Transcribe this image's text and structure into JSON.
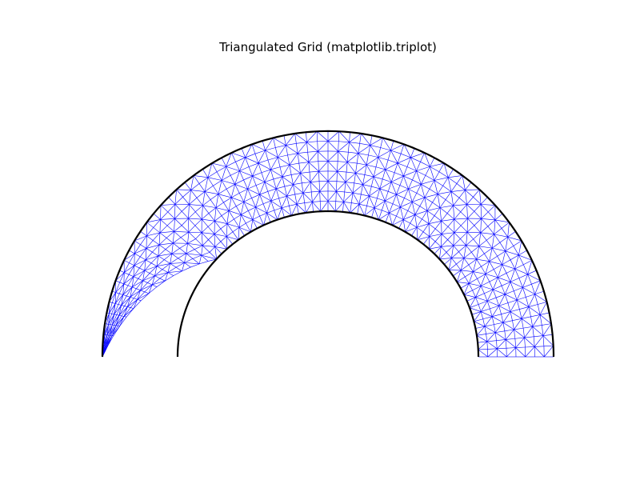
{
  "chart_data": {
    "type": "triplot",
    "title": "Triangulated Grid (matplotlib.triplot)",
    "xlabel": "",
    "ylabel": "",
    "axes_visible": false,
    "grid": false,
    "colors": {
      "mesh": "#0000ff",
      "boundary": "#000000"
    },
    "inner_circle": {
      "center": [
        0.0,
        0.0
      ],
      "radius": 1.0,
      "theta_range_deg": [
        0,
        180
      ]
    },
    "outer_ellipse": {
      "center": [
        0.0,
        0.0
      ],
      "a": 1.5,
      "b": 1.55,
      "theta_range_deg": [
        0,
        180
      ]
    },
    "mesh": {
      "theta_range_deg": [
        0,
        180
      ],
      "radial_levels": 8,
      "angular_steps": 64,
      "inner_visible_from_deg": 0,
      "inner_visible_to_deg": 138
    },
    "xlim": [
      -1.5,
      1.5
    ],
    "ylim": [
      0.0,
      1.55
    ]
  }
}
